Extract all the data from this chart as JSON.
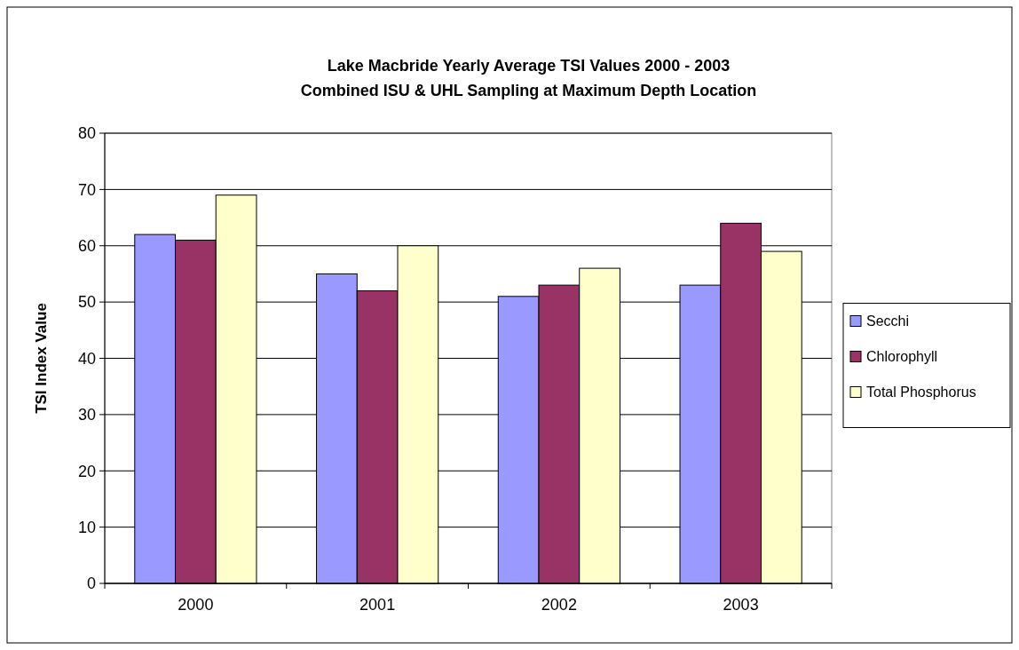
{
  "chart_data": {
    "type": "bar",
    "title": "Lake Macbride Yearly Average TSI Values 2000 - 2003",
    "subtitle": "Combined ISU & UHL Sampling at Maximum Depth Location",
    "ylabel": "TSI Index Value",
    "categories": [
      "2000",
      "2001",
      "2002",
      "2003"
    ],
    "series": [
      {
        "name": "Secchi",
        "color": "#9999ff",
        "values": [
          62,
          55,
          51,
          53
        ]
      },
      {
        "name": "Chlorophyll",
        "color": "#993366",
        "values": [
          61,
          52,
          53,
          64
        ]
      },
      {
        "name": "Total Phosphorus",
        "color": "#ffffcc",
        "values": [
          69,
          60,
          56,
          59
        ]
      }
    ],
    "ylim": [
      0,
      80
    ],
    "yticks": [
      0,
      10,
      20,
      30,
      40,
      50,
      60,
      70,
      80
    ],
    "grid": "y",
    "legend": "right"
  }
}
